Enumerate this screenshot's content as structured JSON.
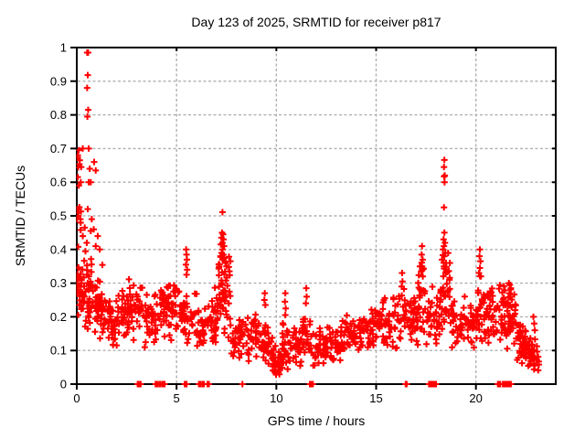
{
  "window": {
    "background": "#ffffff",
    "foreground": "#000000"
  },
  "labels": {
    "title": "Day 123 of 2025, SRMTID for receiver p817",
    "xlabel": "GPS time / hours",
    "ylabel": "SRMTID / TECUs"
  },
  "chart_data": {
    "type": "scatter",
    "title": "Day 123 of 2025, SRMTID for receiver p817",
    "xlabel": "GPS time / hours",
    "ylabel": "SRMTID / TECUs",
    "xlim": [
      0,
      24
    ],
    "ylim": [
      0,
      1
    ],
    "xticks": [
      [
        "0",
        0
      ],
      [
        "5",
        5
      ],
      [
        "10",
        10
      ],
      [
        "15",
        15
      ],
      [
        "20",
        20
      ]
    ],
    "yticks": [
      [
        "0",
        0
      ],
      [
        "0.1",
        0.1
      ],
      [
        "0.2",
        0.2
      ],
      [
        "0.3",
        0.3
      ],
      [
        "0.4",
        0.4
      ],
      [
        "0.5",
        0.5
      ],
      [
        "0.6",
        0.6
      ],
      [
        "0.7",
        0.7
      ],
      [
        "0.8",
        0.8
      ],
      [
        "0.9",
        0.9
      ],
      [
        "1",
        1
      ]
    ],
    "grid": {
      "x_values": [
        5,
        10,
        15,
        20
      ],
      "y_values": [
        0.1,
        0.2,
        0.3,
        0.4,
        0.5,
        0.6,
        0.7,
        0.8,
        0.9
      ],
      "style": "dashed",
      "color": "#b0b0b0"
    },
    "marker": {
      "shape": "plus",
      "color": "#ff0000",
      "size": 9,
      "stroke": 2
    },
    "series_name": "SRMTID",
    "prng_seed": 123817,
    "feature_points": [
      [
        0.52,
        0.985
      ],
      [
        0.57,
        0.985
      ],
      [
        0.55,
        0.918
      ],
      [
        0.52,
        0.88
      ],
      [
        0.57,
        0.815
      ],
      [
        0.53,
        0.795
      ],
      [
        0.3,
        0.7
      ],
      [
        0.1,
        0.695
      ],
      [
        0.05,
        0.68
      ],
      [
        0.15,
        0.665
      ],
      [
        0.22,
        0.645
      ],
      [
        0.6,
        0.7
      ],
      [
        0.65,
        0.64
      ],
      [
        0.87,
        0.66
      ],
      [
        0.95,
        0.635
      ],
      [
        0.05,
        0.615
      ],
      [
        0.2,
        0.6
      ],
      [
        0.6,
        0.6
      ],
      [
        0.7,
        0.6
      ],
      [
        0.03,
        0.52
      ],
      [
        0.08,
        0.5
      ],
      [
        0.55,
        0.52
      ],
      [
        0.02,
        0.49
      ],
      [
        0.18,
        0.49
      ],
      [
        0.75,
        0.49
      ],
      [
        0.4,
        0.465
      ],
      [
        0.85,
        0.46
      ],
      [
        0.7,
        0.455
      ],
      [
        0.3,
        0.44
      ],
      [
        1.05,
        0.44
      ],
      [
        0.5,
        0.42
      ],
      [
        0.95,
        0.41
      ],
      [
        1.15,
        0.4
      ],
      [
        5.48,
        0.4
      ],
      [
        5.5,
        0.385
      ],
      [
        5.52,
        0.37
      ],
      [
        5.47,
        0.355
      ],
      [
        5.53,
        0.34
      ],
      [
        5.5,
        0.325
      ],
      [
        7.3,
        0.511
      ],
      [
        7.28,
        0.45
      ],
      [
        7.33,
        0.445
      ],
      [
        7.25,
        0.435
      ],
      [
        7.35,
        0.43
      ],
      [
        7.3,
        0.42
      ],
      [
        7.22,
        0.415
      ],
      [
        7.38,
        0.41
      ],
      [
        7.3,
        0.4
      ],
      [
        7.26,
        0.39
      ],
      [
        7.34,
        0.385
      ],
      [
        7.2,
        0.38
      ],
      [
        7.4,
        0.375
      ],
      [
        7.3,
        0.37
      ],
      [
        7.45,
        0.36
      ],
      [
        7.15,
        0.355
      ],
      [
        7.5,
        0.35
      ],
      [
        9.42,
        0.27
      ],
      [
        9.4,
        0.25
      ],
      [
        9.45,
        0.235
      ],
      [
        10.45,
        0.27
      ],
      [
        10.43,
        0.245
      ],
      [
        10.47,
        0.225
      ],
      [
        10.45,
        0.205
      ],
      [
        11.5,
        0.285
      ],
      [
        11.52,
        0.26
      ],
      [
        11.48,
        0.24
      ],
      [
        16.3,
        0.33
      ],
      [
        16.32,
        0.305
      ],
      [
        16.28,
        0.29
      ],
      [
        17.3,
        0.41
      ],
      [
        17.28,
        0.385
      ],
      [
        17.33,
        0.37
      ],
      [
        17.3,
        0.35
      ],
      [
        17.26,
        0.335
      ],
      [
        17.34,
        0.32
      ],
      [
        18.42,
        0.666
      ],
      [
        18.4,
        0.645
      ],
      [
        18.44,
        0.62
      ],
      [
        18.41,
        0.617
      ],
      [
        18.43,
        0.6
      ],
      [
        18.4,
        0.525
      ],
      [
        18.42,
        0.45
      ],
      [
        18.38,
        0.43
      ],
      [
        18.45,
        0.42
      ],
      [
        18.4,
        0.41
      ],
      [
        18.35,
        0.4
      ],
      [
        18.47,
        0.39
      ],
      [
        18.42,
        0.38
      ],
      [
        18.3,
        0.37
      ],
      [
        18.5,
        0.36
      ],
      [
        18.4,
        0.35
      ],
      [
        20.2,
        0.4
      ],
      [
        20.18,
        0.38
      ],
      [
        20.23,
        0.365
      ],
      [
        20.2,
        0.345
      ],
      [
        20.15,
        0.33
      ],
      [
        20.25,
        0.32
      ],
      [
        21.65,
        0.3
      ],
      [
        21.7,
        0.295
      ],
      [
        21.75,
        0.285
      ],
      [
        21.68,
        0.27
      ],
      [
        21.72,
        0.26
      ],
      [
        22.88,
        0.2
      ],
      [
        22.92,
        0.18
      ],
      [
        22.95,
        0.16
      ]
    ],
    "zero_time_points": [
      3.05,
      3.1,
      3.15,
      3.2,
      3.95,
      4.0,
      4.05,
      4.15,
      4.2,
      4.3,
      4.35,
      4.4,
      5.41,
      5.5,
      6.12,
      6.17,
      6.22,
      6.32,
      6.37,
      6.55,
      6.62,
      8.3,
      11.68,
      11.73,
      11.78,
      11.83,
      16.48,
      16.53,
      17.65,
      17.7,
      17.75,
      17.8,
      17.85,
      17.9,
      17.95,
      18.0,
      21.1,
      21.16,
      21.22,
      21.35,
      21.4,
      21.45,
      21.5,
      21.55,
      21.6,
      21.65,
      21.7,
      21.75
    ],
    "bands": [
      [
        0.0,
        0.3,
        30,
        0.17,
        0.38
      ],
      [
        0.0,
        0.25,
        10,
        0.38,
        0.7
      ],
      [
        0.3,
        0.8,
        40,
        0.15,
        0.4
      ],
      [
        0.8,
        1.3,
        38,
        0.1,
        0.36
      ],
      [
        1.3,
        2.0,
        42,
        0.08,
        0.28
      ],
      [
        2.0,
        2.6,
        36,
        0.1,
        0.3
      ],
      [
        2.6,
        3.3,
        40,
        0.12,
        0.33
      ],
      [
        3.3,
        4.0,
        36,
        0.1,
        0.3
      ],
      [
        4.0,
        4.6,
        34,
        0.12,
        0.31
      ],
      [
        4.6,
        5.3,
        40,
        0.12,
        0.33
      ],
      [
        5.3,
        6.0,
        36,
        0.09,
        0.3
      ],
      [
        6.0,
        6.6,
        30,
        0.08,
        0.24
      ],
      [
        6.6,
        7.1,
        34,
        0.1,
        0.3
      ],
      [
        7.1,
        7.7,
        50,
        0.13,
        0.42
      ],
      [
        7.7,
        8.4,
        36,
        0.07,
        0.2
      ],
      [
        8.4,
        9.3,
        40,
        0.06,
        0.22
      ],
      [
        9.3,
        9.8,
        30,
        0.04,
        0.18
      ],
      [
        9.8,
        10.3,
        34,
        0.01,
        0.12
      ],
      [
        10.3,
        10.6,
        22,
        0.04,
        0.2
      ],
      [
        10.6,
        11.3,
        36,
        0.05,
        0.17
      ],
      [
        11.3,
        11.7,
        26,
        0.06,
        0.23
      ],
      [
        11.7,
        12.5,
        40,
        0.05,
        0.17
      ],
      [
        12.5,
        13.3,
        40,
        0.06,
        0.18
      ],
      [
        13.3,
        14.2,
        42,
        0.08,
        0.22
      ],
      [
        14.2,
        15.0,
        42,
        0.1,
        0.24
      ],
      [
        15.0,
        15.8,
        42,
        0.1,
        0.27
      ],
      [
        15.8,
        16.6,
        38,
        0.1,
        0.29
      ],
      [
        16.6,
        17.1,
        30,
        0.1,
        0.26
      ],
      [
        17.1,
        17.5,
        26,
        0.14,
        0.38
      ],
      [
        17.5,
        18.2,
        36,
        0.1,
        0.3
      ],
      [
        18.2,
        18.7,
        40,
        0.13,
        0.4
      ],
      [
        18.7,
        19.5,
        38,
        0.1,
        0.28
      ],
      [
        19.5,
        20.1,
        32,
        0.1,
        0.26
      ],
      [
        20.1,
        20.4,
        20,
        0.12,
        0.36
      ],
      [
        20.4,
        21.0,
        36,
        0.1,
        0.3
      ],
      [
        21.0,
        21.5,
        30,
        0.12,
        0.33
      ],
      [
        21.5,
        22.0,
        36,
        0.08,
        0.3
      ],
      [
        22.0,
        22.5,
        40,
        0.05,
        0.2
      ],
      [
        22.5,
        22.9,
        26,
        0.04,
        0.16
      ],
      [
        22.9,
        23.2,
        14,
        0.03,
        0.14
      ]
    ]
  }
}
